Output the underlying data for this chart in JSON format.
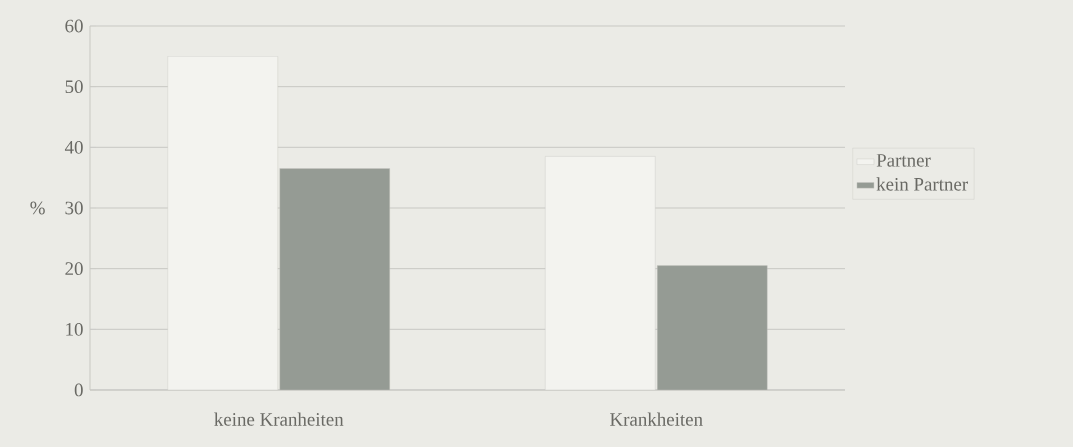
{
  "chart_data": {
    "type": "bar",
    "ylabel": "%",
    "categories": [
      "keine Kranheiten",
      "Krankheiten"
    ],
    "series": [
      {
        "name": "Partner",
        "color": "#f3f3ef",
        "values": [
          55,
          38.5
        ]
      },
      {
        "name": "kein Partner",
        "color": "#959b94",
        "values": [
          36.5,
          20.5
        ]
      }
    ],
    "ylim": [
      0,
      60
    ],
    "yticks": [
      0,
      10,
      20,
      30,
      40,
      50,
      60
    ],
    "grid": "y",
    "legend": "right"
  }
}
